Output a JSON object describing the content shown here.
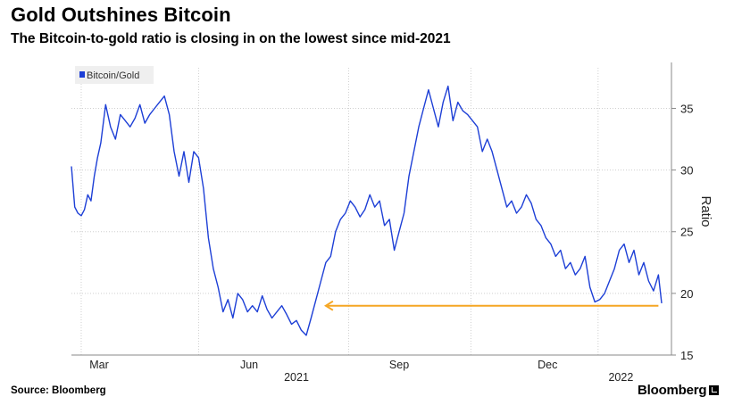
{
  "title": "Gold Outshines Bitcoin",
  "subtitle": "The Bitcoin-to-gold ratio is closing in on the lowest since mid-2021",
  "source": "Source: Bloomberg",
  "brand": "Bloomberg",
  "colors": {
    "series": "#1d3fd6",
    "annotation_arrow": "#f5a623",
    "grid": "#cfcfcf",
    "axis": "#8a8a8a",
    "legend_bg": "#efefef"
  },
  "chart_data": {
    "type": "line",
    "title": "Gold Outshines Bitcoin",
    "subtitle": "The Bitcoin-to-gold ratio is closing in on the lowest since mid-2021",
    "ylabel": "Ratio",
    "ylim": [
      15,
      38
    ],
    "yticks": [
      15,
      20,
      25,
      30,
      35
    ],
    "y_axis_position": "right",
    "xlim": [
      "2021-02-12",
      "2022-02-15"
    ],
    "x_month_ticks": [
      {
        "label": "Mar",
        "date": "2021-03-01"
      },
      {
        "label": "Jun",
        "date": "2021-06-01"
      },
      {
        "label": "Sep",
        "date": "2021-09-01"
      },
      {
        "label": "Dec",
        "date": "2021-12-01"
      }
    ],
    "x_year_labels": [
      {
        "label": "2021",
        "date": "2021-06-30"
      },
      {
        "label": "2022",
        "date": "2022-01-15"
      }
    ],
    "gridlines": [
      "2021-02-18",
      "2021-05-01",
      "2021-08-01",
      "2021-10-15",
      "2022-01-01"
    ],
    "grid": true,
    "legend": {
      "placement": "top-left",
      "entries": [
        "Bitcoin/Gold"
      ]
    },
    "series": [
      {
        "name": "Bitcoin/Gold",
        "x": [
          "2021-02-12",
          "2021-02-14",
          "2021-02-16",
          "2021-02-18",
          "2021-02-20",
          "2021-02-22",
          "2021-02-24",
          "2021-02-26",
          "2021-02-28",
          "2021-03-02",
          "2021-03-05",
          "2021-03-08",
          "2021-03-11",
          "2021-03-14",
          "2021-03-17",
          "2021-03-20",
          "2021-03-23",
          "2021-03-26",
          "2021-03-29",
          "2021-04-01",
          "2021-04-04",
          "2021-04-07",
          "2021-04-10",
          "2021-04-13",
          "2021-04-16",
          "2021-04-19",
          "2021-04-22",
          "2021-04-25",
          "2021-04-28",
          "2021-05-01",
          "2021-05-04",
          "2021-05-07",
          "2021-05-10",
          "2021-05-13",
          "2021-05-16",
          "2021-05-19",
          "2021-05-22",
          "2021-05-25",
          "2021-05-28",
          "2021-05-31",
          "2021-06-03",
          "2021-06-06",
          "2021-06-09",
          "2021-06-12",
          "2021-06-15",
          "2021-06-18",
          "2021-06-21",
          "2021-06-24",
          "2021-06-27",
          "2021-06-30",
          "2021-07-03",
          "2021-07-06",
          "2021-07-09",
          "2021-07-12",
          "2021-07-15",
          "2021-07-18",
          "2021-07-21",
          "2021-07-24",
          "2021-07-27",
          "2021-07-30",
          "2021-08-02",
          "2021-08-05",
          "2021-08-08",
          "2021-08-11",
          "2021-08-14",
          "2021-08-17",
          "2021-08-20",
          "2021-08-23",
          "2021-08-26",
          "2021-08-29",
          "2021-09-01",
          "2021-09-04",
          "2021-09-07",
          "2021-09-10",
          "2021-09-13",
          "2021-09-16",
          "2021-09-19",
          "2021-09-22",
          "2021-09-25",
          "2021-09-28",
          "2021-10-01",
          "2021-10-04",
          "2021-10-07",
          "2021-10-10",
          "2021-10-13",
          "2021-10-16",
          "2021-10-19",
          "2021-10-22",
          "2021-10-25",
          "2021-10-28",
          "2021-10-31",
          "2021-11-03",
          "2021-11-06",
          "2021-11-09",
          "2021-11-12",
          "2021-11-15",
          "2021-11-18",
          "2021-11-21",
          "2021-11-24",
          "2021-11-27",
          "2021-11-30",
          "2021-12-03",
          "2021-12-06",
          "2021-12-09",
          "2021-12-12",
          "2021-12-15",
          "2021-12-18",
          "2021-12-21",
          "2021-12-24",
          "2021-12-27",
          "2021-12-30",
          "2022-01-02",
          "2022-01-05",
          "2022-01-08",
          "2022-01-11",
          "2022-01-14",
          "2022-01-17",
          "2022-01-20",
          "2022-01-23",
          "2022-01-26",
          "2022-01-29",
          "2022-02-01",
          "2022-02-04",
          "2022-02-07",
          "2022-02-09"
        ],
        "y": [
          30.3,
          27.0,
          26.5,
          26.3,
          26.8,
          28.0,
          27.5,
          29.5,
          31.0,
          32.2,
          35.3,
          33.5,
          32.5,
          34.5,
          34.0,
          33.5,
          34.2,
          35.3,
          33.8,
          34.5,
          35.0,
          35.5,
          36.0,
          34.5,
          31.5,
          29.5,
          31.5,
          29.0,
          31.5,
          31.0,
          28.5,
          24.5,
          22.0,
          20.5,
          18.5,
          19.5,
          18.0,
          20.0,
          19.5,
          18.5,
          19.0,
          18.5,
          19.8,
          18.7,
          18.0,
          18.5,
          19.0,
          18.3,
          17.5,
          17.8,
          17.0,
          16.6,
          18.0,
          19.5,
          21.0,
          22.5,
          23.0,
          25.0,
          26.0,
          26.5,
          27.5,
          27.0,
          26.2,
          26.8,
          28.0,
          27.0,
          27.5,
          25.5,
          26.0,
          23.5,
          25.0,
          26.5,
          29.5,
          31.5,
          33.5,
          35.0,
          36.5,
          35.0,
          33.5,
          35.5,
          36.8,
          34.0,
          35.5,
          34.8,
          34.5,
          34.0,
          33.5,
          31.5,
          32.5,
          31.5,
          30.0,
          28.5,
          27.0,
          27.5,
          26.5,
          27.0,
          28.0,
          27.3,
          26.0,
          25.5,
          24.5,
          24.0,
          23.0,
          23.5,
          22.0,
          22.5,
          21.5,
          22.0,
          23.0,
          20.5,
          19.3,
          19.5,
          20.0,
          21.0,
          22.0,
          23.5,
          24.0,
          22.5,
          23.5,
          21.5,
          22.5,
          21.0,
          20.2,
          21.5,
          19.2
        ]
      }
    ],
    "annotations": [
      {
        "type": "arrow",
        "direction": "left",
        "y": 19.0,
        "x_start": "2022-02-07",
        "x_end": "2021-07-18"
      }
    ]
  }
}
